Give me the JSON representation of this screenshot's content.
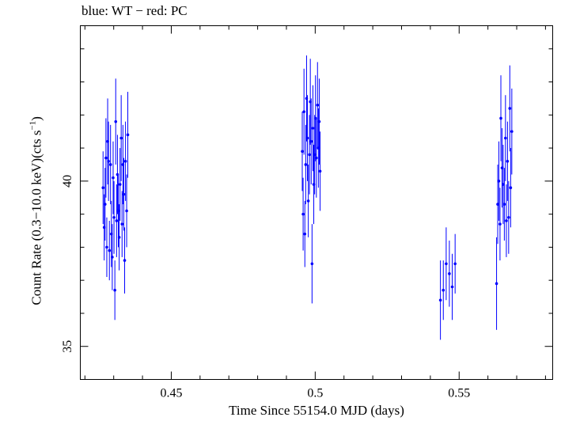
{
  "chart_data": {
    "type": "scatter",
    "title": "blue: WT − red: PC",
    "xlabel": "Time Since 55154.0 MJD (days)",
    "ylabel_main": "Count Rate (0.3−10.0 keV)(cts s",
    "ylabel_sup": "−1",
    "ylabel_end": ")",
    "xlim": [
      0.4184,
      0.5825
    ],
    "ylim": [
      34.0,
      44.7
    ],
    "xticks": [
      0.45,
      0.5,
      0.55
    ],
    "xtick_labels": [
      "0.45",
      "0.5",
      "0.55"
    ],
    "yticks": [
      35,
      40
    ],
    "ytick_labels": [
      "35",
      "40"
    ],
    "grid": false,
    "color": "#0000ff",
    "series": [
      {
        "points": [
          [
            0.4263,
            39.8,
            1.1
          ],
          [
            0.4267,
            38.6,
            1.0
          ],
          [
            0.427,
            39.3,
            1.1
          ],
          [
            0.4273,
            40.7,
            1.2
          ],
          [
            0.4276,
            38.0,
            0.9
          ],
          [
            0.4279,
            41.2,
            1.3
          ],
          [
            0.4282,
            40.6,
            1.2
          ],
          [
            0.4285,
            37.9,
            0.9
          ],
          [
            0.4289,
            40.5,
            1.2
          ],
          [
            0.4292,
            38.4,
            1.0
          ],
          [
            0.4295,
            37.7,
            1.0
          ],
          [
            0.4298,
            40.1,
            1.1
          ],
          [
            0.4301,
            38.9,
            1.1
          ],
          [
            0.4304,
            36.7,
            0.9
          ],
          [
            0.4307,
            41.8,
            1.3
          ],
          [
            0.431,
            38.8,
            1.1
          ],
          [
            0.4313,
            40.2,
            1.2
          ],
          [
            0.4316,
            39.1,
            1.1
          ],
          [
            0.4319,
            38.3,
            1.0
          ],
          [
            0.4322,
            39.9,
            1.1
          ],
          [
            0.4326,
            41.3,
            1.3
          ],
          [
            0.4329,
            38.7,
            1.0
          ],
          [
            0.4332,
            40.5,
            1.2
          ],
          [
            0.4335,
            39.6,
            1.1
          ],
          [
            0.4338,
            37.6,
            1.0
          ],
          [
            0.4341,
            40.6,
            1.2
          ],
          [
            0.4345,
            39.1,
            1.1
          ],
          [
            0.4349,
            41.4,
            1.3
          ],
          [
            0.4955,
            40.9,
            1.2
          ],
          [
            0.4958,
            39.0,
            1.1
          ],
          [
            0.4961,
            42.1,
            1.3
          ],
          [
            0.4964,
            38.4,
            1.0
          ],
          [
            0.4967,
            40.5,
            1.2
          ],
          [
            0.497,
            42.5,
            1.3
          ],
          [
            0.4973,
            41.3,
            1.3
          ],
          [
            0.4976,
            39.4,
            1.1
          ],
          [
            0.498,
            40.8,
            1.2
          ],
          [
            0.4983,
            42.4,
            1.3
          ],
          [
            0.4986,
            41.2,
            1.3
          ],
          [
            0.4989,
            37.5,
            1.2
          ],
          [
            0.4992,
            41.6,
            1.3
          ],
          [
            0.4995,
            39.9,
            1.2
          ],
          [
            0.4998,
            40.8,
            1.2
          ],
          [
            0.5001,
            41.9,
            1.3
          ],
          [
            0.5004,
            40.7,
            1.2
          ],
          [
            0.5008,
            42.3,
            1.3
          ],
          [
            0.5011,
            41.0,
            1.2
          ],
          [
            0.5014,
            41.8,
            1.3
          ],
          [
            0.5017,
            40.3,
            1.2
          ],
          [
            0.5435,
            36.4,
            1.2
          ],
          [
            0.5445,
            36.7,
            0.9
          ],
          [
            0.5455,
            37.5,
            1.1
          ],
          [
            0.5466,
            37.2,
            1.0
          ],
          [
            0.5476,
            36.8,
            1.0
          ],
          [
            0.5486,
            37.5,
            0.9
          ],
          [
            0.563,
            36.9,
            1.4
          ],
          [
            0.5634,
            39.3,
            1.2
          ],
          [
            0.5638,
            40.0,
            1.2
          ],
          [
            0.5642,
            38.7,
            1.1
          ],
          [
            0.5645,
            41.9,
            1.3
          ],
          [
            0.5649,
            40.4,
            1.2
          ],
          [
            0.5653,
            39.9,
            1.2
          ],
          [
            0.5657,
            39.3,
            1.1
          ],
          [
            0.5661,
            41.3,
            1.3
          ],
          [
            0.5664,
            38.8,
            1.1
          ],
          [
            0.5668,
            40.6,
            1.2
          ],
          [
            0.5672,
            38.9,
            1.1
          ],
          [
            0.5676,
            42.2,
            1.3
          ],
          [
            0.5679,
            39.8,
            1.2
          ],
          [
            0.5683,
            41.5,
            1.3
          ]
        ]
      }
    ]
  }
}
